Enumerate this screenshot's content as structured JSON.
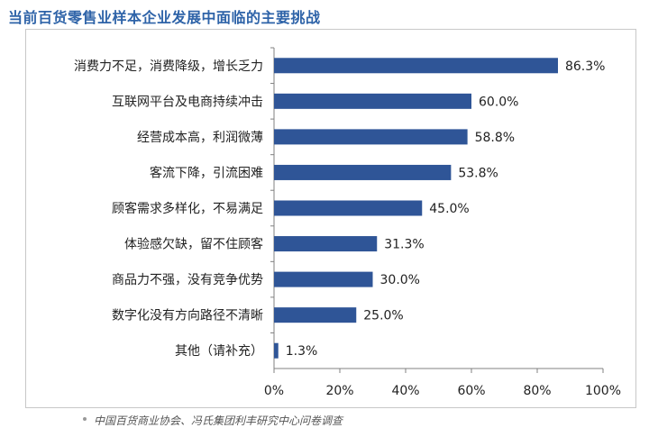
{
  "chart_data": {
    "type": "bar",
    "orientation": "horizontal",
    "title": "当前百货零售业样本企业发展中面临的主要挑战",
    "categories": [
      "消费力不足，消费降级，增长乏力",
      "互联网平台及电商持续冲击",
      "经营成本高，利润微薄",
      "客流下降，引流困难",
      "顾客需求多样化，不易满足",
      "体验感欠缺，留不住顾客",
      "商品力不强，没有竞争优势",
      "数字化没有方向路径不清晰",
      "其他（请补充）"
    ],
    "values": [
      86.3,
      60.0,
      58.8,
      53.8,
      45.0,
      31.3,
      30.0,
      25.0,
      1.3
    ],
    "data_labels": [
      "86.3%",
      "60.0%",
      "58.8%",
      "53.8%",
      "45.0%",
      "31.3%",
      "30.0%",
      "25.0%",
      "1.3%"
    ],
    "xlim": [
      0,
      100
    ],
    "xticks": [
      "0%",
      "20%",
      "40%",
      "60%",
      "80%",
      "100%"
    ],
    "xlabel": "",
    "ylabel": "",
    "grid": false,
    "bar_color": "#2f5597"
  },
  "source": "中国百货商业协会、冯氏集团利丰研究中心问卷调查"
}
